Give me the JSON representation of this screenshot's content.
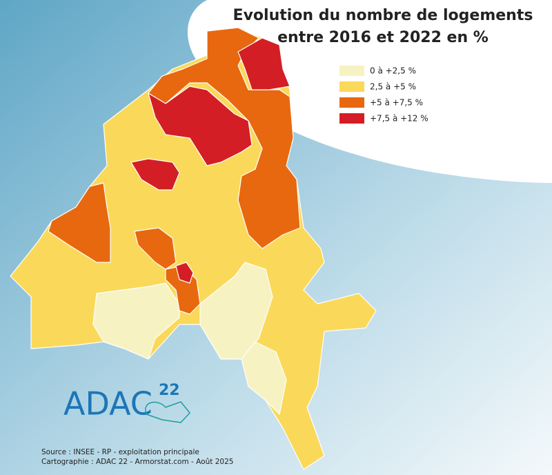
{
  "title_lines": [
    "Evolution du nombre de logements",
    "entre 2016 et 2022 en %"
  ],
  "legend": [
    {
      "label": "0 à +2,5 %",
      "color": "#f7f2c2"
    },
    {
      "label": "2,5 à +5 %",
      "color": "#fad95a"
    },
    {
      "label": "+5 à +7,5 %",
      "color": "#e8680f"
    },
    {
      "label": "+7,5 à +12 %",
      "color": "#d41e25"
    }
  ],
  "logo": {
    "name": "ADAC",
    "number": "22"
  },
  "credits": [
    "Source : INSEE - RP - exploitation principale",
    "Cartographie : ADAC 22 - Armorstat.com - Août 2025"
  ]
}
